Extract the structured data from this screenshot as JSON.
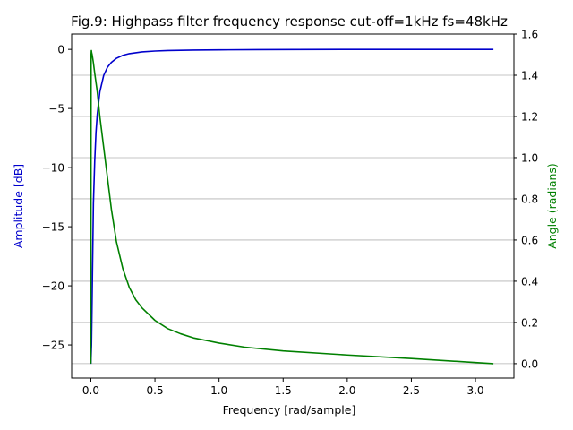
{
  "chart_data": {
    "type": "line",
    "title": "Fig.9: Highpass filter frequency response cut-off=1kHz fs=48kHz",
    "xlabel": "Frequency [rad/sample]",
    "ylabel_left": "Amplitude [dB]",
    "ylabel_right": "Angle (radians)",
    "xlim": [
      -0.15,
      3.3
    ],
    "ylim_left": [
      -27.8,
      1.3
    ],
    "ylim_right": [
      -0.07,
      1.6
    ],
    "xticks": [
      "0.0",
      "0.5",
      "1.0",
      "1.5",
      "2.0",
      "2.5",
      "3.0"
    ],
    "yticks_left": [
      "0",
      "−5",
      "−10",
      "−15",
      "−20",
      "−25"
    ],
    "yticks_right": [
      "0.0",
      "0.2",
      "0.4",
      "0.6",
      "0.8",
      "1.0",
      "1.2",
      "1.4",
      "1.6"
    ],
    "grid": "horizontal, right axis",
    "colors": {
      "amplitude": "#0000cc",
      "angle": "#008000",
      "left_label": "#0000cc",
      "right_label": "#008000",
      "grid": "#b0b0b0"
    },
    "series": [
      {
        "axis": "left",
        "x": [
          0.0,
          0.005,
          0.01,
          0.02,
          0.03,
          0.04,
          0.05,
          0.07,
          0.1,
          0.13,
          0.16,
          0.2,
          0.25,
          0.3,
          0.4,
          0.5,
          0.6,
          0.8,
          1.0,
          1.3,
          1.6,
          2.0,
          2.5,
          3.14
        ],
        "values": [
          -26.6,
          -25.0,
          -21.0,
          -13.0,
          -9.5,
          -7.0,
          -5.5,
          -3.6,
          -2.2,
          -1.5,
          -1.1,
          -0.75,
          -0.5,
          -0.36,
          -0.21,
          -0.14,
          -0.1,
          -0.06,
          -0.04,
          -0.02,
          -0.01,
          -0.005,
          -0.002,
          0.0
        ]
      },
      {
        "axis": "right",
        "x": [
          0.0,
          0.002,
          0.004,
          0.006,
          0.008,
          0.01,
          0.015,
          0.02,
          0.03,
          0.05,
          0.07,
          0.1,
          0.13,
          0.16,
          0.2,
          0.25,
          0.3,
          0.35,
          0.4,
          0.5,
          0.6,
          0.7,
          0.8,
          1.0,
          1.2,
          1.5,
          2.0,
          2.5,
          3.14
        ],
        "values": [
          0.0,
          1.5,
          1.52,
          1.51,
          1.505,
          1.5,
          1.48,
          1.46,
          1.41,
          1.32,
          1.2,
          1.05,
          0.9,
          0.75,
          0.59,
          0.46,
          0.37,
          0.31,
          0.27,
          0.21,
          0.17,
          0.145,
          0.125,
          0.1,
          0.08,
          0.062,
          0.042,
          0.025,
          0.0
        ]
      }
    ]
  }
}
